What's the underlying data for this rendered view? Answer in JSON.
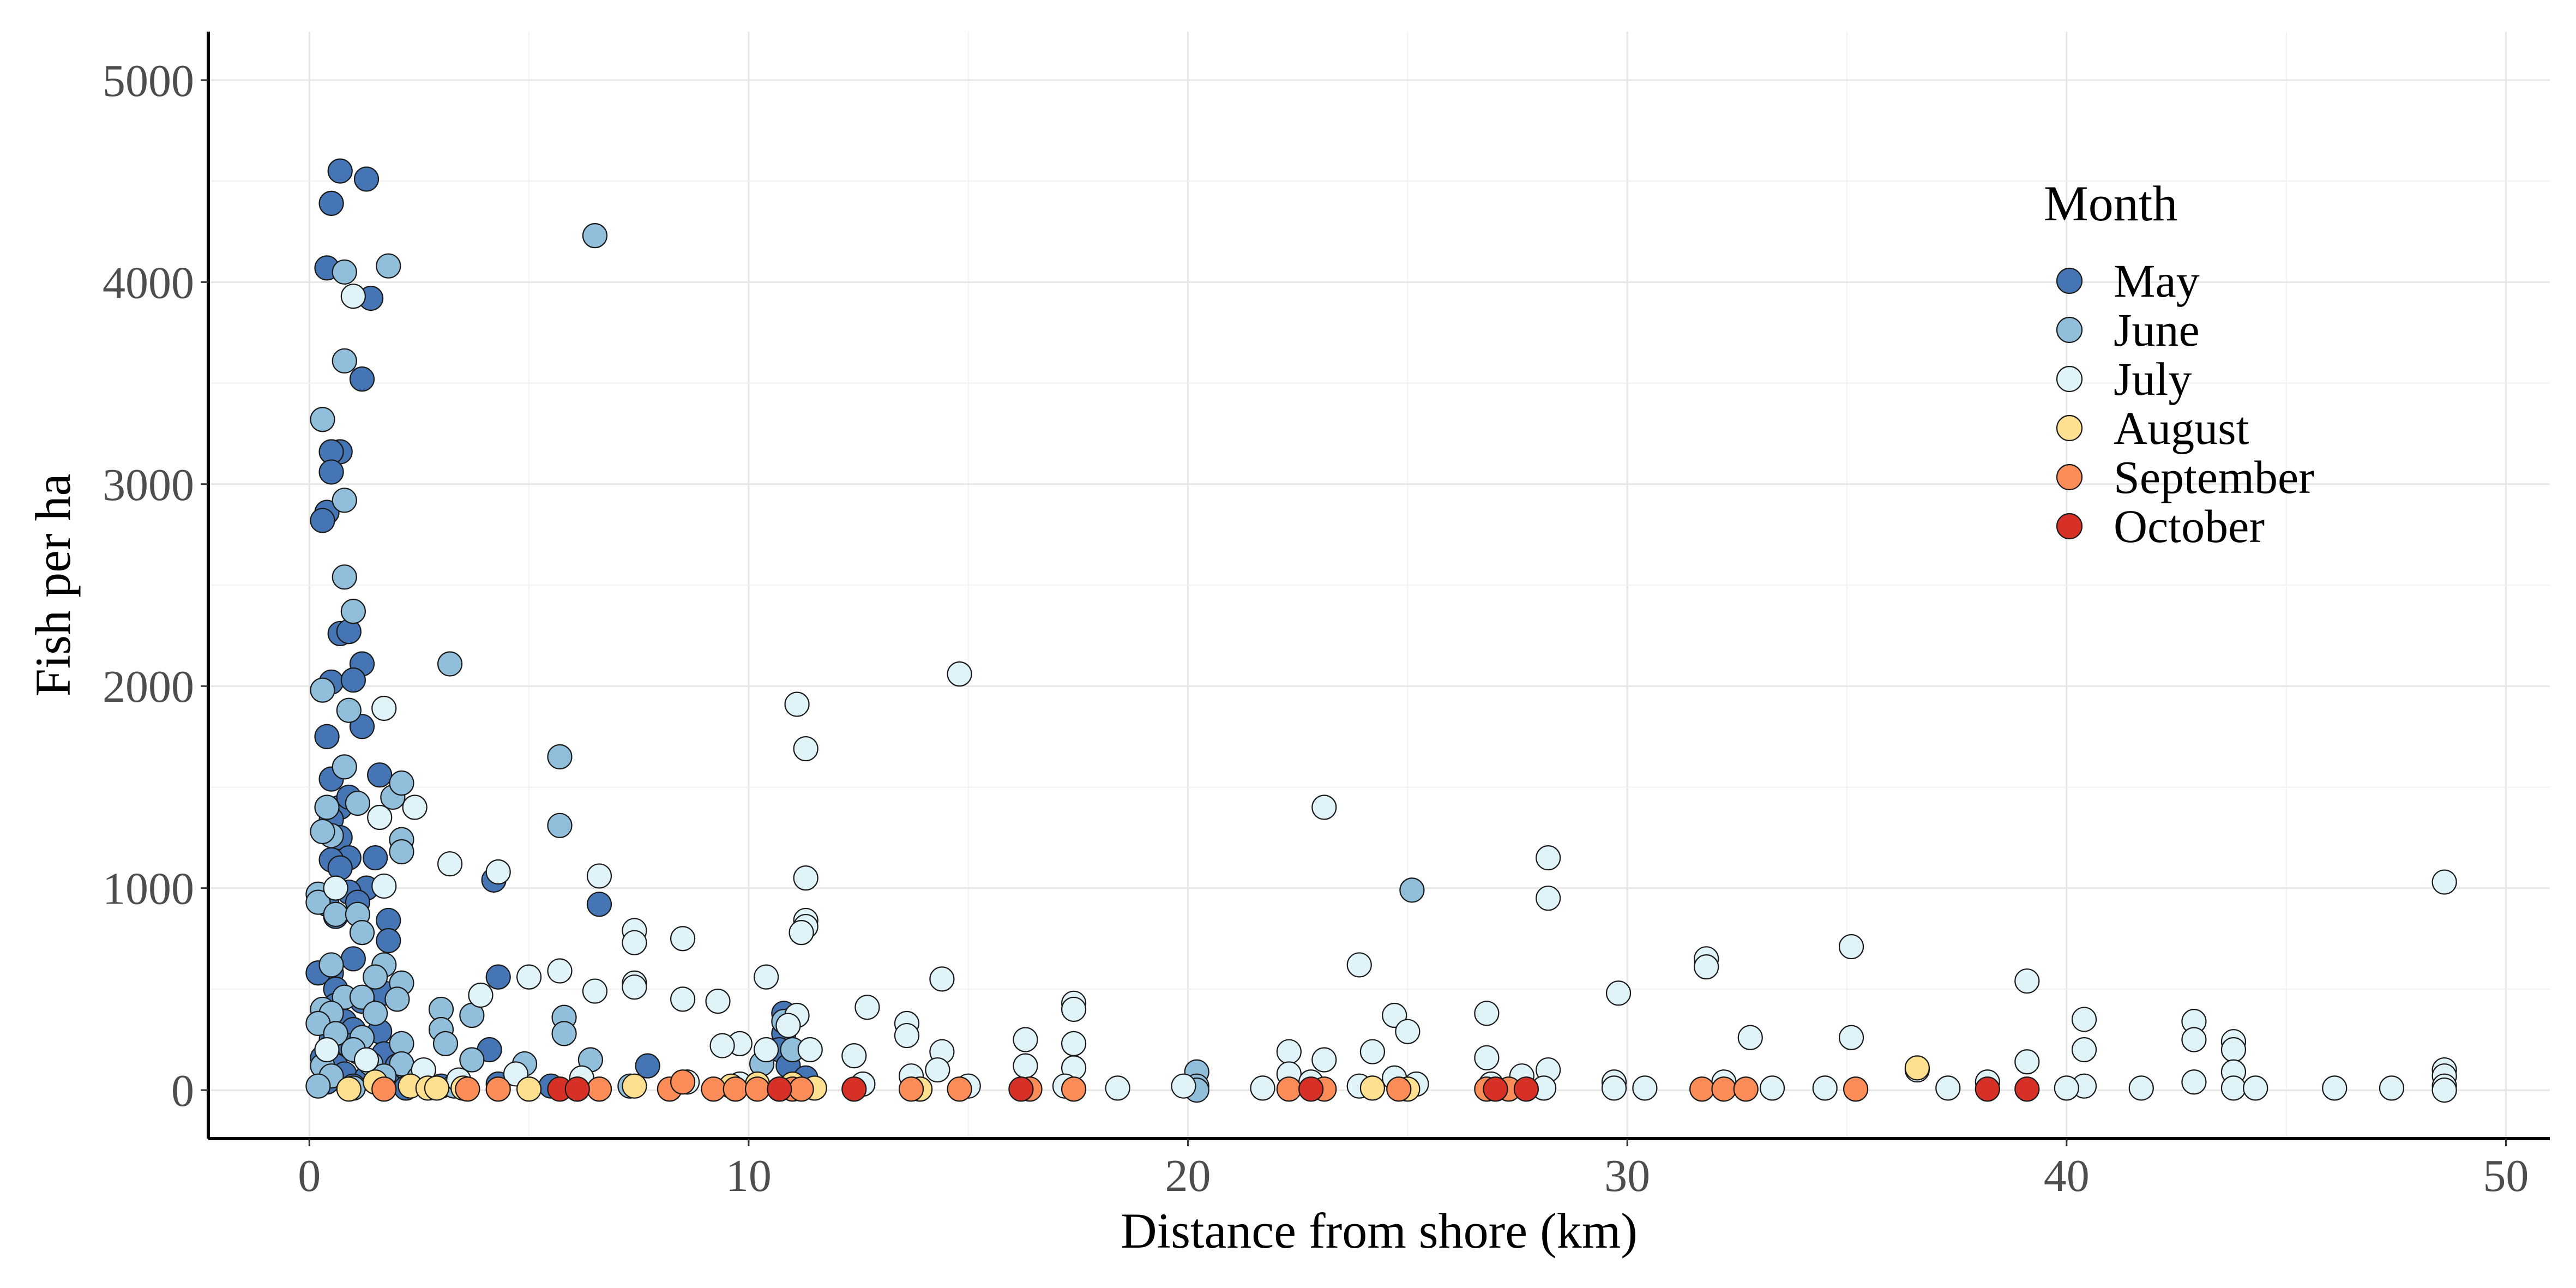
{
  "chart_data": {
    "type": "scatter",
    "title": "",
    "xlabel": "Distance from shore (km)",
    "ylabel": "Fish per ha",
    "xlim": [
      -2.3,
      51
    ],
    "ylim": [
      -240,
      5240
    ],
    "xticks": [
      0,
      10,
      20,
      30,
      40,
      50
    ],
    "yticks": [
      0,
      1000,
      2000,
      3000,
      4000,
      5000
    ],
    "grid": true,
    "legend": {
      "title": "Month",
      "placement": "top-right"
    },
    "series": [
      {
        "name": "May",
        "color": "#4575b4",
        "points": [
          [
            0.7,
            4550
          ],
          [
            1.3,
            4510
          ],
          [
            0.5,
            4390
          ],
          [
            0.4,
            4070
          ],
          [
            1.4,
            3920
          ],
          [
            1.2,
            3520
          ],
          [
            0.7,
            3160
          ],
          [
            0.5,
            3160
          ],
          [
            0.5,
            3060
          ],
          [
            0.4,
            2860
          ],
          [
            0.3,
            2820
          ],
          [
            0.7,
            2260
          ],
          [
            0.9,
            2270
          ],
          [
            1.2,
            2110
          ],
          [
            0.5,
            2020
          ],
          [
            1.0,
            2030
          ],
          [
            1.2,
            1800
          ],
          [
            0.4,
            1750
          ],
          [
            1.6,
            1560
          ],
          [
            0.5,
            1540
          ],
          [
            0.7,
            1400
          ],
          [
            0.9,
            1450
          ],
          [
            0.5,
            1340
          ],
          [
            0.7,
            1250
          ],
          [
            0.9,
            1150
          ],
          [
            1.5,
            1150
          ],
          [
            0.5,
            1140
          ],
          [
            0.7,
            1100
          ],
          [
            1.3,
            1000
          ],
          [
            0.9,
            980
          ],
          [
            1.1,
            930
          ],
          [
            0.4,
            920
          ],
          [
            0.6,
            860
          ],
          [
            1.8,
            840
          ],
          [
            1.8,
            740
          ],
          [
            1.0,
            650
          ],
          [
            4.2,
            1040
          ],
          [
            6.6,
            920
          ],
          [
            4.3,
            560
          ],
          [
            0.5,
            580
          ],
          [
            0.2,
            580
          ],
          [
            0.6,
            500
          ],
          [
            1.2,
            440
          ],
          [
            1.7,
            480
          ],
          [
            0.6,
            420
          ],
          [
            0.4,
            360
          ],
          [
            0.8,
            340
          ],
          [
            1.0,
            300
          ],
          [
            1.6,
            290
          ],
          [
            0.5,
            250
          ],
          [
            0.9,
            220
          ],
          [
            1.1,
            190
          ],
          [
            1.7,
            180
          ],
          [
            0.3,
            160
          ],
          [
            0.6,
            120
          ],
          [
            2.0,
            120
          ],
          [
            0.8,
            80
          ],
          [
            1.3,
            60
          ],
          [
            4.1,
            200
          ],
          [
            7.7,
            120
          ],
          [
            10.8,
            380
          ],
          [
            10.8,
            280
          ],
          [
            10.7,
            200
          ],
          [
            10.9,
            120
          ],
          [
            11.3,
            60
          ],
          [
            0.4,
            40
          ],
          [
            1.0,
            20
          ],
          [
            1.8,
            30
          ],
          [
            2.2,
            10
          ],
          [
            3.0,
            20
          ],
          [
            4.3,
            30
          ],
          [
            5.5,
            20
          ]
        ]
      },
      {
        "name": "June",
        "color": "#91bfdb",
        "points": [
          [
            6.5,
            4230
          ],
          [
            0.8,
            4050
          ],
          [
            1.8,
            4080
          ],
          [
            0.3,
            3320
          ],
          [
            0.8,
            3610
          ],
          [
            0.8,
            2920
          ],
          [
            0.8,
            2540
          ],
          [
            1.0,
            2370
          ],
          [
            3.2,
            2110
          ],
          [
            0.3,
            1980
          ],
          [
            0.9,
            1880
          ],
          [
            0.8,
            1600
          ],
          [
            1.9,
            1450
          ],
          [
            1.1,
            1420
          ],
          [
            2.1,
            1520
          ],
          [
            0.4,
            1400
          ],
          [
            0.5,
            1260
          ],
          [
            0.3,
            1280
          ],
          [
            2.1,
            1240
          ],
          [
            2.1,
            1180
          ],
          [
            5.7,
            1650
          ],
          [
            5.7,
            1310
          ],
          [
            0.2,
            970
          ],
          [
            0.2,
            930
          ],
          [
            0.6,
            870
          ],
          [
            1.1,
            870
          ],
          [
            1.2,
            780
          ],
          [
            0.5,
            620
          ],
          [
            1.7,
            620
          ],
          [
            2.1,
            530
          ],
          [
            1.5,
            560
          ],
          [
            0.8,
            460
          ],
          [
            1.2,
            460
          ],
          [
            2.0,
            450
          ],
          [
            0.3,
            400
          ],
          [
            0.5,
            380
          ],
          [
            1.5,
            380
          ],
          [
            3.0,
            400
          ],
          [
            3.7,
            370
          ],
          [
            0.2,
            330
          ],
          [
            0.6,
            280
          ],
          [
            1.2,
            260
          ],
          [
            3.0,
            300
          ],
          [
            3.1,
            230
          ],
          [
            1.0,
            200
          ],
          [
            2.1,
            230
          ],
          [
            4.9,
            130
          ],
          [
            0.3,
            120
          ],
          [
            1.4,
            130
          ],
          [
            2.1,
            130
          ],
          [
            3.7,
            150
          ],
          [
            0.5,
            70
          ],
          [
            1.7,
            70
          ],
          [
            2.5,
            60
          ],
          [
            5.8,
            360
          ],
          [
            5.8,
            280
          ],
          [
            6.4,
            150
          ],
          [
            10.8,
            340
          ],
          [
            11.0,
            200
          ],
          [
            10.3,
            130
          ],
          [
            20.2,
            90
          ],
          [
            20.2,
            20
          ],
          [
            20.2,
            0
          ],
          [
            25.1,
            990
          ],
          [
            0.2,
            20
          ],
          [
            1.0,
            10
          ],
          [
            3.3,
            20
          ],
          [
            7.3,
            20
          ]
        ]
      },
      {
        "name": "July",
        "color": "#e0f3f8",
        "points": [
          [
            1.0,
            3930
          ],
          [
            1.7,
            1890
          ],
          [
            2.4,
            1400
          ],
          [
            1.6,
            1350
          ],
          [
            3.2,
            1120
          ],
          [
            4.3,
            1080
          ],
          [
            0.6,
            1000
          ],
          [
            1.7,
            1010
          ],
          [
            6.6,
            1060
          ],
          [
            7.4,
            790
          ],
          [
            7.4,
            730
          ],
          [
            8.5,
            750
          ],
          [
            5.7,
            590
          ],
          [
            5.0,
            560
          ],
          [
            7.4,
            530
          ],
          [
            7.4,
            510
          ],
          [
            6.5,
            490
          ],
          [
            3.9,
            470
          ],
          [
            8.5,
            450
          ],
          [
            9.3,
            440
          ],
          [
            10.4,
            560
          ],
          [
            11.1,
            1910
          ],
          [
            11.3,
            1690
          ],
          [
            11.3,
            1050
          ],
          [
            11.3,
            840
          ],
          [
            11.3,
            810
          ],
          [
            11.2,
            780
          ],
          [
            14.8,
            2060
          ],
          [
            14.4,
            550
          ],
          [
            12.7,
            410
          ],
          [
            13.6,
            330
          ],
          [
            13.6,
            270
          ],
          [
            11.1,
            370
          ],
          [
            10.9,
            320
          ],
          [
            11.4,
            200
          ],
          [
            9.8,
            230
          ],
          [
            9.4,
            220
          ],
          [
            10.4,
            200
          ],
          [
            12.4,
            170
          ],
          [
            14.4,
            190
          ],
          [
            13.7,
            70
          ],
          [
            14.3,
            100
          ],
          [
            16.3,
            250
          ],
          [
            16.3,
            120
          ],
          [
            17.4,
            430
          ],
          [
            17.4,
            400
          ],
          [
            17.4,
            230
          ],
          [
            17.4,
            110
          ],
          [
            22.3,
            190
          ],
          [
            22.3,
            80
          ],
          [
            23.1,
            1400
          ],
          [
            23.9,
            620
          ],
          [
            24.7,
            370
          ],
          [
            24.2,
            190
          ],
          [
            25.0,
            290
          ],
          [
            23.1,
            150
          ],
          [
            24.7,
            60
          ],
          [
            23.9,
            20
          ],
          [
            22.8,
            20
          ],
          [
            26.8,
            380
          ],
          [
            26.8,
            160
          ],
          [
            28.2,
            1150
          ],
          [
            28.2,
            950
          ],
          [
            29.8,
            480
          ],
          [
            28.2,
            100
          ],
          [
            27.6,
            70
          ],
          [
            31.8,
            650
          ],
          [
            31.8,
            610
          ],
          [
            32.8,
            260
          ],
          [
            32.2,
            40
          ],
          [
            35.1,
            710
          ],
          [
            35.1,
            260
          ],
          [
            36.6,
            100
          ],
          [
            39.1,
            540
          ],
          [
            39.1,
            140
          ],
          [
            38.2,
            40
          ],
          [
            40.4,
            350
          ],
          [
            40.4,
            200
          ],
          [
            40.4,
            20
          ],
          [
            42.9,
            340
          ],
          [
            42.9,
            250
          ],
          [
            42.9,
            40
          ],
          [
            43.8,
            240
          ],
          [
            43.8,
            200
          ],
          [
            43.8,
            90
          ],
          [
            43.8,
            10
          ],
          [
            48.6,
            1030
          ],
          [
            48.6,
            100
          ],
          [
            48.6,
            70
          ],
          [
            48.6,
            20
          ],
          [
            48.6,
            0
          ],
          [
            0.4,
            200
          ],
          [
            1.3,
            150
          ],
          [
            2.6,
            100
          ],
          [
            3.4,
            50
          ],
          [
            4.7,
            80
          ],
          [
            6.2,
            60
          ],
          [
            8.6,
            40
          ],
          [
            9.8,
            30
          ],
          [
            12.6,
            30
          ],
          [
            15.0,
            20
          ],
          [
            17.2,
            20
          ],
          [
            19.9,
            20
          ],
          [
            22.8,
            40
          ],
          [
            25.2,
            30
          ],
          [
            26.9,
            30
          ],
          [
            29.7,
            40
          ],
          [
            29.7,
            10
          ],
          [
            30.4,
            10
          ],
          [
            33.3,
            10
          ],
          [
            34.5,
            10
          ],
          [
            37.3,
            10
          ],
          [
            40.0,
            10
          ],
          [
            41.7,
            10
          ],
          [
            44.3,
            10
          ],
          [
            46.1,
            10
          ],
          [
            47.4,
            10
          ],
          [
            28.1,
            10
          ],
          [
            21.7,
            10
          ],
          [
            18.4,
            10
          ]
        ]
      },
      {
        "name": "August",
        "color": "#fee090",
        "points": [
          [
            0.9,
            5
          ],
          [
            1.5,
            40
          ],
          [
            2.3,
            20
          ],
          [
            2.7,
            10
          ],
          [
            2.9,
            10
          ],
          [
            5.0,
            5
          ],
          [
            7.4,
            20
          ],
          [
            9.6,
            20
          ],
          [
            10.2,
            30
          ],
          [
            11.0,
            30
          ],
          [
            25.0,
            5
          ],
          [
            36.6,
            110
          ],
          [
            11.5,
            10
          ],
          [
            3.5,
            10
          ],
          [
            13.9,
            5
          ],
          [
            24.2,
            10
          ]
        ]
      },
      {
        "name": "September",
        "color": "#fc8d59",
        "points": [
          [
            1.7,
            5
          ],
          [
            3.6,
            5
          ],
          [
            4.3,
            5
          ],
          [
            6.1,
            5
          ],
          [
            6.6,
            5
          ],
          [
            8.2,
            5
          ],
          [
            8.5,
            40
          ],
          [
            9.2,
            5
          ],
          [
            9.7,
            5
          ],
          [
            10.2,
            5
          ],
          [
            10.7,
            5
          ],
          [
            11.0,
            5
          ],
          [
            11.2,
            5
          ],
          [
            13.7,
            5
          ],
          [
            14.8,
            5
          ],
          [
            16.4,
            5
          ],
          [
            17.4,
            5
          ],
          [
            22.3,
            5
          ],
          [
            23.1,
            5
          ],
          [
            24.8,
            5
          ],
          [
            26.8,
            5
          ],
          [
            27.3,
            5
          ],
          [
            31.7,
            5
          ],
          [
            32.2,
            5
          ],
          [
            32.7,
            5
          ],
          [
            35.2,
            5
          ]
        ]
      },
      {
        "name": "October",
        "color": "#d73027",
        "points": [
          [
            5.7,
            5
          ],
          [
            6.1,
            5
          ],
          [
            10.7,
            5
          ],
          [
            12.4,
            5
          ],
          [
            16.2,
            5
          ],
          [
            22.8,
            5
          ],
          [
            27.0,
            5
          ],
          [
            27.7,
            5
          ],
          [
            38.2,
            5
          ],
          [
            39.1,
            5
          ]
        ]
      }
    ]
  }
}
